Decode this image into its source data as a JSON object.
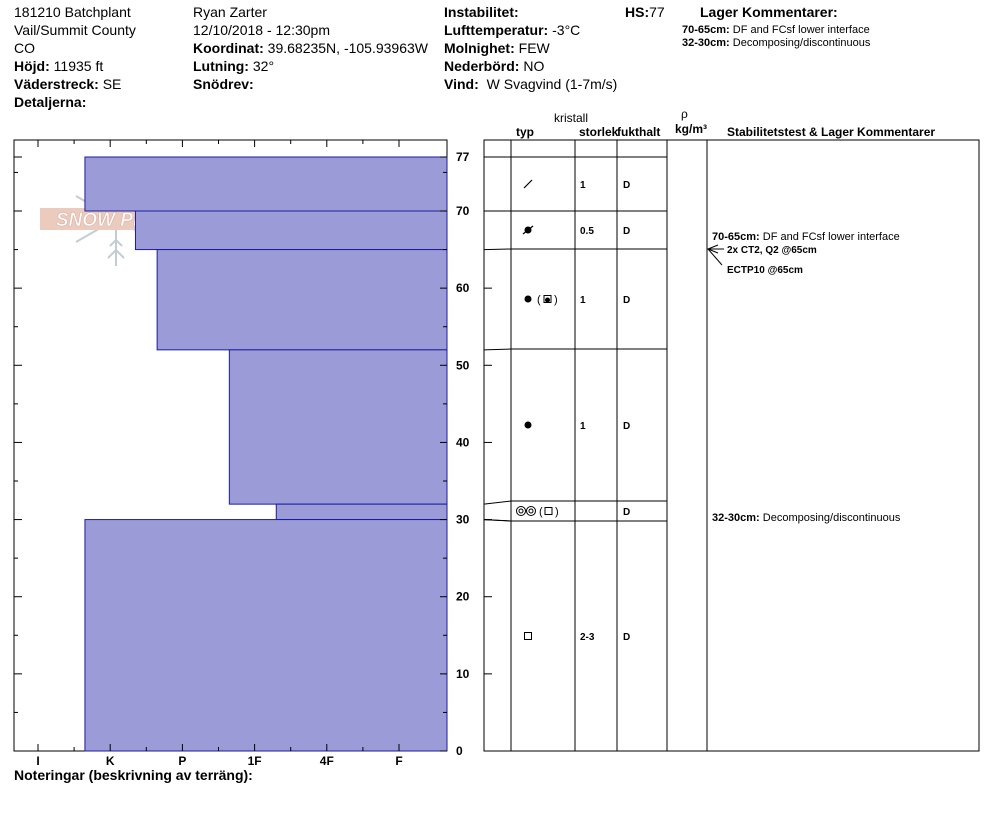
{
  "header": {
    "col1": [
      "181210 Batchplant",
      "Vail/Summit County",
      "CO"
    ],
    "hojd_label": "Höjd:",
    "hojd_value": "11935 ft",
    "vaderstreck_label": "Väderstreck:",
    "vaderstreck_value": "SE",
    "detaljer_label": "Detaljerna:",
    "observer": "Ryan Zarter",
    "datetime": "12/10/2018 - 12:30pm",
    "koordinat_label": "Koordinat:",
    "koordinat_value": "39.68235N, -105.93963W",
    "lutning_label": "Lutning:",
    "lutning_value": "32°",
    "snodrev_label": "Snödrev:",
    "instabilitet_label": "Instabilitet:",
    "lufttemp_label": "Lufttemperatur:",
    "lufttemp_value": "-3°C",
    "molnighet_label": "Molnighet:",
    "molnighet_value": "FEW",
    "nederbord_label": "Nederbörd:",
    "nederbord_value": "NO",
    "vind_label": "Vind:",
    "vind_value": "W Svagvind (1-7m/s)",
    "hs_label": "HS:",
    "hs_value": "77",
    "lager_title": "Lager Kommentarer:",
    "lager_comments": [
      {
        "range": "70-65cm:",
        "text": "DF and FCsf lower interface"
      },
      {
        "range": "32-30cm:",
        "text": "Decomposing/discontinuous"
      }
    ]
  },
  "columns": {
    "kristall": "kristall",
    "typ": "typ",
    "storlek": "storlek",
    "fukthalt": "fukthalt",
    "rho": "ρ",
    "density_unit": "kg/m³",
    "stability": "Stabilitetstest & Lager Kommentarer"
  },
  "notes_label": "Noteringar (beskrivning av terräng):",
  "logo_text": "SNOW PILOT",
  "colors": {
    "hardness_fill": "#9b9bd8",
    "hardness_stroke": "#1c1c9c",
    "logo": "#e8b8a8"
  },
  "chart_data": {
    "type": "bar",
    "orientation": "horizontal",
    "ylabel": "",
    "y_range": [
      0,
      77
    ],
    "y_ticks": [
      0,
      10,
      20,
      30,
      40,
      50,
      60,
      70,
      77
    ],
    "hardness_scale": [
      "I",
      "K",
      "P",
      "1F",
      "4F",
      "F"
    ],
    "layers": [
      {
        "top": 77,
        "bottom": 70,
        "hardness": 0.65,
        "grain": "decomposing",
        "size": "1",
        "moisture": "D"
      },
      {
        "top": 70,
        "bottom": 65,
        "hardness": 1.35,
        "grain": "decomposing-rounded",
        "size": "0.5",
        "moisture": "D"
      },
      {
        "top": 65,
        "bottom": 52,
        "hardness": 1.65,
        "grain": "rounded-faceted",
        "size": "1",
        "moisture": "D"
      },
      {
        "top": 52,
        "bottom": 32,
        "hardness": 2.65,
        "grain": "rounded",
        "size": "1",
        "moisture": "D"
      },
      {
        "top": 32,
        "bottom": 30,
        "hardness": 3.3,
        "grain": "melt-faceted",
        "size": "",
        "moisture": "D"
      },
      {
        "top": 30,
        "bottom": 0,
        "hardness": 0.65,
        "grain": "faceted",
        "size": "2-3",
        "moisture": "D"
      }
    ],
    "stability_tests": [
      {
        "depth": 65,
        "text": "2x CT2, Q2 @65cm"
      },
      {
        "depth": 65,
        "text": "ECTP10 @65cm"
      }
    ],
    "layer_comments": [
      {
        "depth": 67.5,
        "range": "70-65cm:",
        "text": "DF and FCsf lower interface"
      },
      {
        "depth": 31,
        "range": "32-30cm:",
        "text": "Decomposing/discontinuous"
      }
    ]
  }
}
